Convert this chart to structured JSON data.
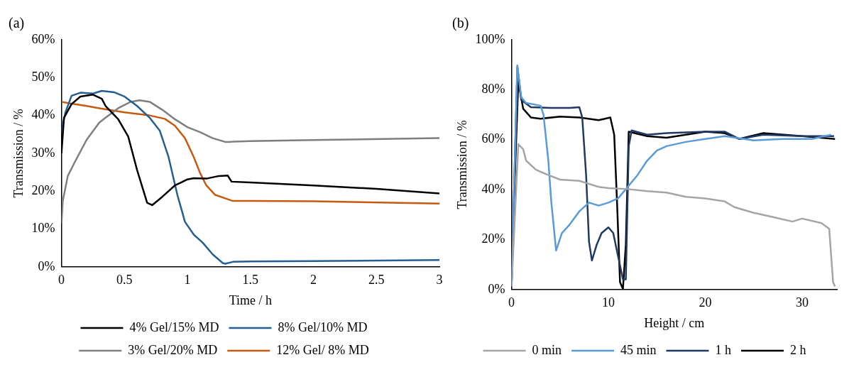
{
  "chart_data": [
    {
      "type": "line",
      "title": "(a)",
      "xlabel": "Time / h",
      "ylabel": "Transmission / %",
      "xlim": [
        0,
        3
      ],
      "xticks": [
        0,
        0.5,
        1,
        1.5,
        2,
        2.5,
        3
      ],
      "ylim": [
        0,
        60
      ],
      "yticks": [
        {
          "value": 0,
          "label": "0%"
        },
        {
          "value": 10,
          "label": "10%"
        },
        {
          "value": 20,
          "label": "20%"
        },
        {
          "value": 30,
          "label": "30%"
        },
        {
          "value": 40,
          "label": "40%"
        },
        {
          "value": 50,
          "label": "50%"
        },
        {
          "value": 60,
          "label": "60%"
        }
      ],
      "legend": "bottom",
      "marker": "none",
      "series": [
        {
          "name": "4% Gel/15% MD",
          "color": "#000000",
          "x": [
            0,
            0.02,
            0.08,
            0.15,
            0.25,
            0.32,
            0.35,
            0.45,
            0.53,
            0.6,
            0.68,
            0.72,
            0.8,
            0.9,
            1.0,
            1.05,
            1.15,
            1.25,
            1.32,
            1.35,
            1.5,
            2,
            2.5,
            3
          ],
          "values": [
            30,
            39.4,
            43,
            45,
            45.5,
            44.4,
            42.5,
            39,
            34.4,
            25.6,
            16.9,
            16.3,
            18.5,
            21.5,
            23.1,
            23.4,
            23.3,
            24,
            24.1,
            22.5,
            22.3,
            21.5,
            20.6,
            19.4
          ]
        },
        {
          "name": "8% Gel/10% MD",
          "color": "#255e91",
          "x": [
            0,
            0.03,
            0.08,
            0.15,
            0.25,
            0.32,
            0.42,
            0.5,
            0.6,
            0.7,
            0.78,
            0.85,
            0.92,
            0.98,
            1.05,
            1.12,
            1.2,
            1.28,
            1.3,
            1.36,
            1.5,
            2,
            3
          ],
          "values": [
            35.6,
            40.7,
            45.2,
            46,
            45.8,
            46.5,
            46.1,
            45,
            42.5,
            39.4,
            36,
            29,
            19,
            11.9,
            8.5,
            6.4,
            3.3,
            1,
            0.8,
            1.3,
            1.4,
            1.5,
            1.8
          ]
        },
        {
          "name": "3% Gel/20% MD",
          "color": "#7f7f7f",
          "x": [
            0,
            0.01,
            0.05,
            0.1,
            0.2,
            0.3,
            0.35,
            0.45,
            0.55,
            0.62,
            0.7,
            0.8,
            0.9,
            1.0,
            1.1,
            1.2,
            1.3,
            1.33,
            1.37,
            1.5,
            2,
            3
          ],
          "values": [
            11.4,
            17.3,
            24,
            27.3,
            33.6,
            38.1,
            39.4,
            41.9,
            43.6,
            44,
            43.6,
            41.5,
            39,
            36.9,
            35.6,
            34,
            33,
            33,
            33.1,
            33.2,
            33.5,
            34
          ]
        },
        {
          "name": "12% Gel/ 8% MD",
          "color": "#c55a11",
          "x": [
            0,
            0.1,
            0.2,
            0.3,
            0.5,
            0.7,
            0.82,
            0.9,
            0.98,
            1.05,
            1.1,
            1.15,
            1.22,
            1.3,
            1.36,
            1.5,
            2,
            3
          ],
          "values": [
            43.6,
            43,
            42.5,
            41.9,
            40.8,
            40,
            39.1,
            37.3,
            34,
            29,
            24.8,
            21.5,
            19,
            18.1,
            17.4,
            17.4,
            17.3,
            16.7
          ]
        }
      ]
    },
    {
      "type": "line",
      "title": "(b)",
      "xlabel": "Height / cm",
      "ylabel": "Transmission / %",
      "xlim": [
        0,
        33.6
      ],
      "xticks": [
        0,
        10,
        20,
        30
      ],
      "ylim": [
        0,
        100
      ],
      "yticks": [
        {
          "value": 0,
          "label": "0%"
        },
        {
          "value": 20,
          "label": "20%"
        },
        {
          "value": 40,
          "label": "40%"
        },
        {
          "value": 60,
          "label": "60%"
        },
        {
          "value": 80,
          "label": "80%"
        },
        {
          "value": 100,
          "label": "100%"
        }
      ],
      "legend": "bottom",
      "marker": "none",
      "series": [
        {
          "name": "0 min",
          "color": "#a5a5a5",
          "x": [
            0,
            0.7,
            1.2,
            1.5,
            2.5,
            3.5,
            5,
            7,
            9,
            10,
            12,
            14,
            16,
            18,
            20,
            22,
            23,
            25,
            27,
            29,
            30,
            32,
            32.8,
            33.2,
            33.4
          ],
          "values": [
            1.2,
            58.2,
            56.2,
            51.6,
            48,
            46.3,
            44,
            43.5,
            41.1,
            40.6,
            40.2,
            39.4,
            38.8,
            37.1,
            36.5,
            35.3,
            33,
            30.7,
            29,
            27.2,
            28.4,
            26.6,
            24.3,
            2.9,
            1.2
          ]
        },
        {
          "name": "45 min",
          "color": "#5b9bd5",
          "x": [
            0,
            0.3,
            0.6,
            1,
            1.5,
            3,
            3.3,
            3.8,
            4.1,
            4.6,
            5.2,
            6,
            7,
            8,
            9,
            10,
            11,
            12,
            13,
            14,
            15,
            16,
            18,
            20,
            22,
            25,
            28,
            31,
            33
          ],
          "values": [
            1.2,
            45.8,
            89.8,
            77,
            74.7,
            73.6,
            70,
            51.6,
            35.3,
            15.6,
            22.6,
            26,
            31.3,
            34.8,
            33.6,
            34.8,
            36.5,
            41.1,
            45.8,
            51.6,
            55.6,
            57.4,
            59.1,
            60.3,
            61.4,
            59.7,
            60.3,
            60.3,
            62
          ]
        },
        {
          "name": "1 h",
          "color": "#203864",
          "x": [
            0,
            0.3,
            0.6,
            1,
            2,
            4,
            6,
            7,
            7.3,
            7.7,
            8,
            8.3,
            8.8,
            9.3,
            10,
            10.5,
            11,
            11.5,
            11.8,
            12.1,
            12.4,
            14,
            16,
            20,
            22,
            23.5,
            26,
            30,
            33.3
          ],
          "values": [
            1.2,
            45.8,
            89.2,
            75.9,
            73,
            72.7,
            72.7,
            73,
            68.9,
            45.8,
            19.1,
            11.6,
            18,
            22.6,
            24.9,
            22.6,
            13.3,
            4.1,
            4.1,
            57.4,
            63.7,
            62,
            62.6,
            63.2,
            63.2,
            60.3,
            62,
            61.4,
            61.4
          ]
        },
        {
          "name": "2 h",
          "color": "#000000",
          "x": [
            0,
            0.4,
            0.7,
            1.2,
            2,
            3,
            5,
            7,
            9,
            10.2,
            10.6,
            10.9,
            11.2,
            11.5,
            11.8,
            12.1,
            14,
            16,
            20,
            22,
            23.5,
            26,
            30,
            33.4
          ],
          "values": [
            1.2,
            51.6,
            83.4,
            72.4,
            68.9,
            68.4,
            69.2,
            68.9,
            67.8,
            68.9,
            62,
            34.2,
            2.9,
            0.2,
            18,
            63.2,
            61.4,
            60.8,
            63.2,
            62.6,
            60.3,
            62.6,
            61.4,
            60.3
          ]
        }
      ]
    }
  ]
}
